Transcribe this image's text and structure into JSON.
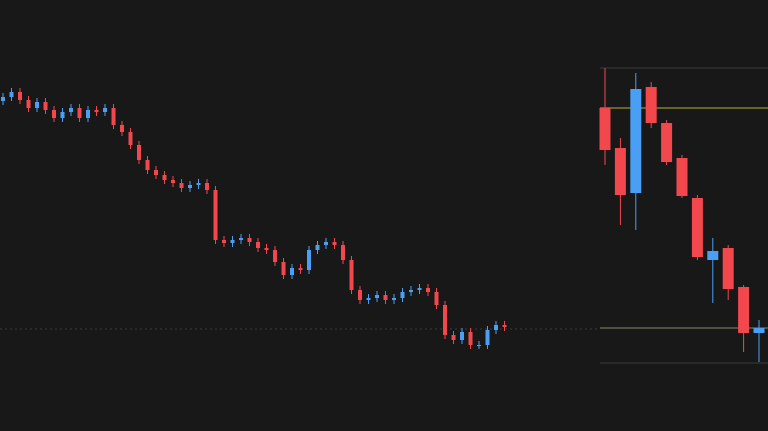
{
  "chart_data": [
    {
      "type": "candlestick",
      "up_color": "#4a9ff5",
      "down_color": "#f2474d",
      "ylim": [
        0,
        431
      ],
      "open": [
        330,
        334,
        339,
        331,
        323,
        329,
        321,
        313,
        319,
        323,
        313,
        321,
        319,
        323,
        306,
        299,
        286,
        271,
        261,
        256,
        251,
        248,
        243,
        246,
        248,
        241,
        191,
        188,
        191,
        193,
        189,
        183,
        181,
        169,
        156,
        163,
        161,
        181,
        186,
        189,
        186,
        171,
        141,
        131,
        133,
        136,
        131,
        133,
        139,
        141,
        143,
        139,
        126,
        96,
        91,
        99,
        86,
        86,
        101,
        106
      ],
      "high": [
        338,
        343,
        343,
        335,
        333,
        333,
        325,
        323,
        327,
        327,
        325,
        325,
        327,
        327,
        310,
        303,
        290,
        275,
        265,
        260,
        255,
        252,
        250,
        252,
        252,
        245,
        195,
        195,
        197,
        197,
        193,
        187,
        185,
        173,
        167,
        167,
        185,
        190,
        193,
        193,
        190,
        175,
        145,
        137,
        140,
        140,
        137,
        143,
        145,
        147,
        147,
        143,
        130,
        100,
        103,
        103,
        90,
        105,
        110,
        110
      ],
      "low": [
        326,
        330,
        327,
        319,
        319,
        317,
        309,
        309,
        315,
        309,
        309,
        315,
        315,
        302,
        295,
        282,
        267,
        257,
        252,
        247,
        244,
        239,
        239,
        242,
        237,
        187,
        184,
        184,
        187,
        185,
        179,
        177,
        165,
        152,
        152,
        157,
        157,
        177,
        182,
        182,
        167,
        137,
        127,
        127,
        129,
        127,
        127,
        129,
        135,
        137,
        135,
        122,
        92,
        87,
        87,
        82,
        82,
        82,
        97,
        100
      ],
      "close": [
        334,
        339,
        331,
        323,
        329,
        321,
        313,
        319,
        323,
        313,
        321,
        319,
        323,
        306,
        299,
        286,
        271,
        261,
        256,
        251,
        248,
        243,
        246,
        248,
        241,
        191,
        188,
        191,
        193,
        189,
        183,
        181,
        169,
        156,
        163,
        161,
        181,
        186,
        189,
        186,
        171,
        141,
        131,
        133,
        136,
        131,
        133,
        139,
        141,
        143,
        139,
        126,
        96,
        91,
        99,
        86,
        86,
        101,
        106,
        104
      ],
      "hlines": [
        {
          "value": 102,
          "color": "#3a3a3a",
          "dashed": true
        }
      ]
    },
    {
      "type": "candlestick",
      "up_color": "#4a9ff5",
      "down_color": "#f2474d",
      "ylim": [
        -31,
        400
      ],
      "open": [
        292,
        252,
        207,
        313,
        277,
        242,
        202,
        140,
        152,
        113,
        67
      ],
      "high": [
        332,
        262,
        327,
        318,
        280,
        245,
        205,
        162,
        155,
        115,
        80
      ],
      "low": [
        235,
        175,
        170,
        272,
        235,
        202,
        140,
        97,
        100,
        48,
        38
      ],
      "close": [
        250,
        205,
        311,
        277,
        238,
        204,
        143,
        149,
        111,
        67,
        72
      ],
      "hlines": [
        {
          "value": 332,
          "color": "#3a3a3a",
          "dashed": false
        },
        {
          "value": 292,
          "color": "#b5b22e",
          "dashed": false
        },
        {
          "value": 72,
          "color": "#8a8a6a",
          "dashed": false
        },
        {
          "value": 37,
          "color": "#3a3a3a",
          "dashed": false
        }
      ]
    }
  ]
}
